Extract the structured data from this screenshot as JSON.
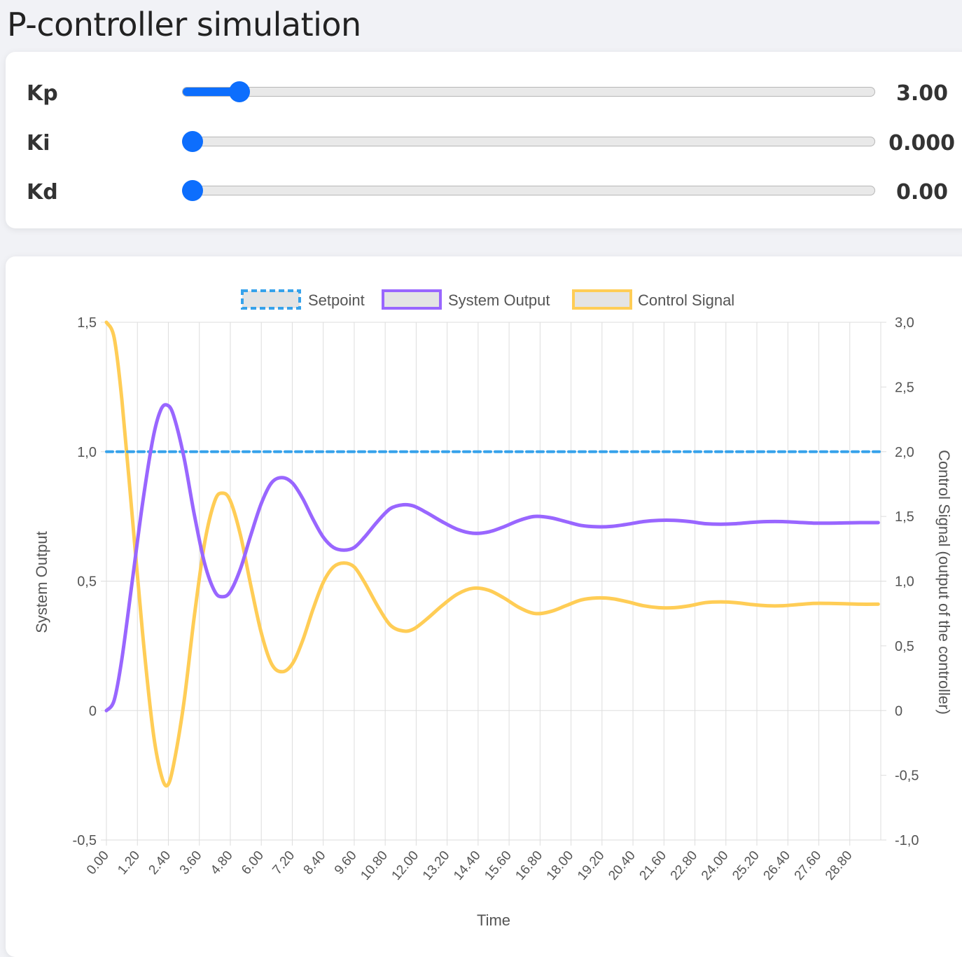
{
  "page": {
    "title": "P-controller simulation"
  },
  "controls": [
    {
      "name": "Kp",
      "value": "3.00",
      "fraction": 0.07
    },
    {
      "name": "Ki",
      "value": "0.000",
      "fraction": 0.0
    },
    {
      "name": "Kd",
      "value": "0.00",
      "fraction": 0.0
    }
  ],
  "colors": {
    "accent": "#0d6efd",
    "setpoint": "#36a2eb",
    "output": "#9966ff",
    "control": "#ffcd56"
  },
  "chart_data": {
    "type": "line",
    "xlabel": "Time",
    "ylabel": "System Output",
    "y2label": "Control Signal (output of the controller)",
    "xlim": [
      0,
      30
    ],
    "ylim": [
      -0.5,
      1.5
    ],
    "y2lim": [
      -1.0,
      3.0
    ],
    "x_ticks": [
      "0.00",
      "1.20",
      "2.40",
      "3.60",
      "4.80",
      "6.00",
      "7.20",
      "8.40",
      "9.60",
      "10.80",
      "12.00",
      "13.20",
      "14.40",
      "15.60",
      "16.80",
      "18.00",
      "19.20",
      "20.40",
      "21.60",
      "22.80",
      "24.00",
      "25.20",
      "26.40",
      "27.60",
      "28.80"
    ],
    "y_ticks": [
      "1,5",
      "1,0",
      "0,5",
      "0",
      "-0,5"
    ],
    "y2_ticks": [
      "3,0",
      "2,5",
      "2,0",
      "1,5",
      "1,0",
      "0,5",
      "0",
      "-0,5",
      "-1,0"
    ],
    "legend": [
      "Setpoint",
      "System Output",
      "Control Signal"
    ],
    "series": [
      {
        "name": "Setpoint",
        "axis": "y",
        "x": [
          0,
          30
        ],
        "values": [
          1.0,
          1.0
        ]
      },
      {
        "name": "System Output",
        "axis": "y",
        "x": [
          0,
          0.3,
          0.6,
          1.0,
          1.4,
          1.8,
          2.1,
          2.35,
          2.6,
          3.0,
          3.4,
          3.8,
          4.2,
          4.5,
          4.8,
          5.2,
          5.6,
          6.0,
          6.4,
          6.8,
          7.2,
          7.6,
          8.0,
          8.4,
          8.8,
          9.2,
          9.6,
          10.0,
          10.5,
          11.0,
          11.5,
          11.9,
          12.4,
          13.0,
          13.6,
          14.2,
          14.8,
          15.4,
          16.0,
          16.6,
          17.2,
          17.8,
          18.4,
          19.0,
          19.6,
          20.2,
          20.8,
          21.4,
          22.0,
          22.6,
          23.2,
          23.8,
          24.4,
          25.0,
          25.6,
          26.2,
          26.8,
          27.4,
          28.0,
          28.6,
          29.2,
          29.9
        ],
        "values": [
          0.0,
          0.04,
          0.2,
          0.5,
          0.8,
          1.05,
          1.16,
          1.18,
          1.14,
          0.98,
          0.76,
          0.57,
          0.46,
          0.44,
          0.46,
          0.55,
          0.68,
          0.8,
          0.88,
          0.9,
          0.88,
          0.82,
          0.74,
          0.67,
          0.63,
          0.62,
          0.63,
          0.67,
          0.73,
          0.78,
          0.795,
          0.79,
          0.765,
          0.73,
          0.7,
          0.685,
          0.69,
          0.71,
          0.735,
          0.75,
          0.745,
          0.73,
          0.715,
          0.71,
          0.712,
          0.72,
          0.73,
          0.735,
          0.735,
          0.73,
          0.722,
          0.72,
          0.722,
          0.727,
          0.73,
          0.73,
          0.727,
          0.724,
          0.724,
          0.725,
          0.726,
          0.726
        ]
      },
      {
        "name": "Control Signal",
        "axis": "y2",
        "x": [
          0,
          0.3,
          0.6,
          1.0,
          1.4,
          1.8,
          2.1,
          2.35,
          2.6,
          3.0,
          3.4,
          3.8,
          4.2,
          4.5,
          4.8,
          5.2,
          5.6,
          6.0,
          6.4,
          6.8,
          7.2,
          7.6,
          8.0,
          8.4,
          8.8,
          9.2,
          9.6,
          10.0,
          10.5,
          11.0,
          11.5,
          11.9,
          12.4,
          13.0,
          13.6,
          14.2,
          14.8,
          15.4,
          16.0,
          16.6,
          17.2,
          17.8,
          18.4,
          19.0,
          19.6,
          20.2,
          20.8,
          21.4,
          22.0,
          22.6,
          23.2,
          23.8,
          24.4,
          25.0,
          25.6,
          26.2,
          26.8,
          27.4,
          28.0,
          28.6,
          29.2,
          29.9
        ],
        "values": [
          3.0,
          2.88,
          2.4,
          1.5,
          0.6,
          -0.15,
          -0.48,
          -0.58,
          -0.42,
          0.06,
          0.72,
          1.29,
          1.62,
          1.68,
          1.62,
          1.35,
          0.96,
          0.6,
          0.36,
          0.3,
          0.36,
          0.54,
          0.78,
          0.99,
          1.11,
          1.14,
          1.11,
          0.99,
          0.81,
          0.66,
          0.615,
          0.63,
          0.705,
          0.81,
          0.9,
          0.945,
          0.93,
          0.87,
          0.795,
          0.75,
          0.765,
          0.81,
          0.855,
          0.87,
          0.864,
          0.84,
          0.81,
          0.795,
          0.795,
          0.81,
          0.834,
          0.84,
          0.834,
          0.819,
          0.81,
          0.81,
          0.819,
          0.828,
          0.828,
          0.825,
          0.822,
          0.822
        ]
      }
    ]
  }
}
